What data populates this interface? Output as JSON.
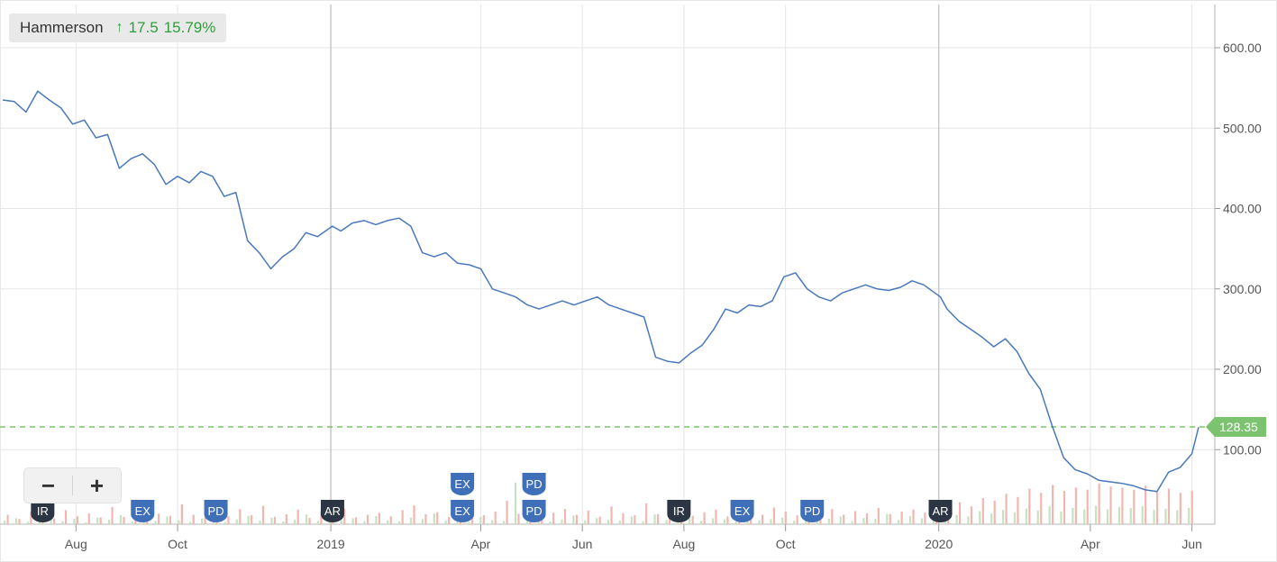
{
  "legend": {
    "name": "Hammerson",
    "arrow_icon": "arrow-up-icon",
    "change": "17.5",
    "change_pct": "15.79%",
    "change_color": "#2e9e3a"
  },
  "zoom": {
    "minus_label": "−",
    "plus_label": "+"
  },
  "price_tag": "128.35",
  "colors": {
    "line": "#4a78bd",
    "grid": "#e6e6e6",
    "year_line": "#c8c8c8",
    "last_price": "#7cc36f",
    "vol_up": "#c6e2c0",
    "vol_down": "#f2b6b0",
    "event_dark": "#2b3544",
    "event_blue": "#3f6fb8"
  },
  "chart_data": {
    "type": "line",
    "title": "",
    "xlabel": "",
    "ylabel": "",
    "series": [
      {
        "name": "Hammerson",
        "x": [
          "2018-06-18",
          "2018-06-25",
          "2018-07-02",
          "2018-07-09",
          "2018-07-16",
          "2018-07-23",
          "2018-07-30",
          "2018-08-06",
          "2018-08-13",
          "2018-08-20",
          "2018-08-27",
          "2018-09-03",
          "2018-09-10",
          "2018-09-17",
          "2018-09-24",
          "2018-10-01",
          "2018-10-08",
          "2018-10-15",
          "2018-10-22",
          "2018-10-29",
          "2018-11-05",
          "2018-11-12",
          "2018-11-19",
          "2018-11-26",
          "2018-12-03",
          "2018-12-10",
          "2018-12-17",
          "2018-12-24",
          "2019-01-02",
          "2019-01-07",
          "2019-01-14",
          "2019-01-21",
          "2019-01-28",
          "2019-02-04",
          "2019-02-11",
          "2019-02-18",
          "2019-02-25",
          "2019-03-04",
          "2019-03-11",
          "2019-03-18",
          "2019-03-25",
          "2019-04-01",
          "2019-04-08",
          "2019-04-15",
          "2019-04-22",
          "2019-04-29",
          "2019-05-06",
          "2019-05-13",
          "2019-05-20",
          "2019-05-27",
          "2019-06-03",
          "2019-06-10",
          "2019-06-17",
          "2019-06-24",
          "2019-07-01",
          "2019-07-08",
          "2019-07-15",
          "2019-07-22",
          "2019-07-29",
          "2019-08-05",
          "2019-08-12",
          "2019-08-19",
          "2019-08-26",
          "2019-09-02",
          "2019-09-09",
          "2019-09-16",
          "2019-09-23",
          "2019-09-30",
          "2019-10-07",
          "2019-10-14",
          "2019-10-21",
          "2019-10-28",
          "2019-11-04",
          "2019-11-11",
          "2019-11-18",
          "2019-11-25",
          "2019-12-02",
          "2019-12-09",
          "2019-12-16",
          "2019-12-23",
          "2020-01-02",
          "2020-01-06",
          "2020-01-13",
          "2020-01-20",
          "2020-01-27",
          "2020-02-03",
          "2020-02-10",
          "2020-02-17",
          "2020-02-24",
          "2020-03-02",
          "2020-03-09",
          "2020-03-16",
          "2020-03-23",
          "2020-03-30",
          "2020-04-06",
          "2020-04-13",
          "2020-04-20",
          "2020-04-27",
          "2020-05-04",
          "2020-05-11",
          "2020-05-18",
          "2020-05-25",
          "2020-06-01",
          "2020-06-05"
        ],
        "values": [
          535,
          533,
          520,
          546,
          535,
          525,
          505,
          510,
          488,
          492,
          450,
          462,
          468,
          455,
          430,
          440,
          432,
          446,
          440,
          415,
          420,
          360,
          345,
          325,
          340,
          350,
          370,
          365,
          378,
          372,
          382,
          385,
          380,
          385,
          388,
          378,
          345,
          340,
          345,
          332,
          330,
          325,
          300,
          295,
          290,
          280,
          275,
          280,
          285,
          280,
          285,
          290,
          280,
          275,
          270,
          265,
          215,
          210,
          208,
          220,
          230,
          250,
          275,
          270,
          280,
          278,
          285,
          315,
          320,
          300,
          290,
          285,
          295,
          300,
          305,
          300,
          298,
          302,
          310,
          305,
          290,
          275,
          260,
          250,
          240,
          228,
          238,
          222,
          195,
          175,
          130,
          90,
          75,
          70,
          62,
          60,
          58,
          55,
          50,
          48,
          72,
          78,
          95,
          128
        ]
      }
    ],
    "volume_up": [
      12,
      20,
      8,
      14,
      25,
      10,
      18,
      6,
      22,
      15,
      30,
      9,
      17,
      11,
      26,
      13,
      8,
      19,
      24,
      7,
      16,
      28,
      12,
      21,
      9,
      15,
      33,
      11,
      18,
      14,
      20,
      10,
      27,
      13,
      9,
      22,
      17,
      36,
      12,
      19,
      8,
      25,
      14,
      11,
      140,
      18,
      23,
      9,
      16,
      29,
      13,
      20,
      15,
      12,
      26,
      10,
      33,
      14,
      18,
      24,
      11,
      20,
      16,
      9,
      28,
      13,
      17,
      22,
      12,
      31,
      15,
      19,
      26,
      10,
      21,
      18,
      35,
      14,
      27,
      20,
      38,
      24,
      31,
      26,
      44,
      36,
      48,
      40,
      52,
      46,
      60,
      43,
      55,
      49,
      62,
      50,
      58,
      54,
      61,
      48,
      52,
      47,
      55
    ],
    "volume_down": [
      18,
      10,
      24,
      16,
      11,
      27,
      15,
      21,
      13,
      33,
      14,
      26,
      12,
      20,
      16,
      38,
      18,
      13,
      22,
      15,
      29,
      17,
      35,
      14,
      19,
      28,
      12,
      25,
      16,
      30,
      13,
      18,
      22,
      15,
      27,
      36,
      19,
      23,
      14,
      21,
      32,
      17,
      24,
      45,
      20,
      16,
      38,
      22,
      29,
      18,
      26,
      14,
      34,
      21,
      17,
      40,
      19,
      25,
      30,
      16,
      23,
      28,
      15,
      27,
      20,
      18,
      32,
      24,
      17,
      26,
      22,
      29,
      18,
      25,
      21,
      31,
      19,
      24,
      28,
      22,
      36,
      30,
      42,
      34,
      50,
      45,
      58,
      52,
      68,
      60,
      75,
      64,
      70,
      66,
      78,
      72,
      70,
      66,
      74,
      62,
      68,
      60,
      64
    ],
    "y_ticks": [
      "600.00",
      "500.00",
      "400.00",
      "300.00",
      "200.00",
      "100.00"
    ],
    "x_ticks": [
      "Aug",
      "Oct",
      "2019",
      "Apr",
      "Jun",
      "Aug",
      "Oct",
      "2020",
      "Apr",
      "Jun"
    ],
    "ylim": [
      0,
      650
    ],
    "last_price": 128.35,
    "grid": true,
    "events": [
      {
        "label": "IR",
        "date": "2018-07-12",
        "style": "dark",
        "row": 1
      },
      {
        "label": "EX",
        "date": "2018-09-10",
        "style": "blue",
        "row": 1
      },
      {
        "label": "PD",
        "date": "2018-10-24",
        "style": "blue",
        "row": 1
      },
      {
        "label": "AR",
        "date": "2019-01-02",
        "style": "dark",
        "row": 1
      },
      {
        "label": "EX",
        "date": "2019-03-21",
        "style": "blue",
        "row": 2
      },
      {
        "label": "EX",
        "date": "2019-03-21",
        "style": "blue",
        "row": 1
      },
      {
        "label": "PD",
        "date": "2019-05-03",
        "style": "blue",
        "row": 2
      },
      {
        "label": "PD",
        "date": "2019-05-03",
        "style": "blue",
        "row": 1
      },
      {
        "label": "IR",
        "date": "2019-07-29",
        "style": "dark",
        "row": 1
      },
      {
        "label": "EX",
        "date": "2019-09-05",
        "style": "blue",
        "row": 1
      },
      {
        "label": "PD",
        "date": "2019-10-17",
        "style": "blue",
        "row": 1
      },
      {
        "label": "AR",
        "date": "2020-01-02",
        "style": "dark",
        "row": 1
      }
    ]
  }
}
